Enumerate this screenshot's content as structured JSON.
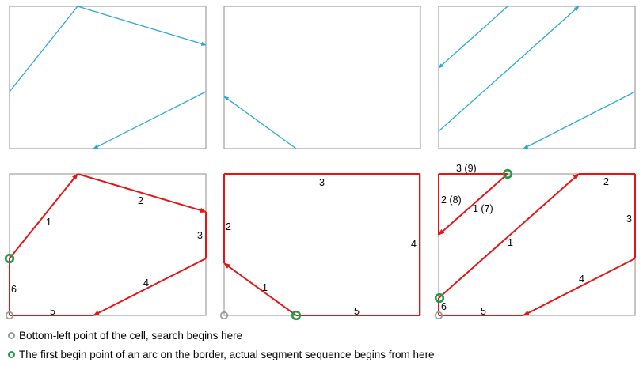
{
  "colors": {
    "arc_blue": "#29a8d6",
    "path_red": "#e31515",
    "frame_grey": "#8c8c8c",
    "marker_grey": "#9a9a9a",
    "marker_green": "#1f9a48"
  },
  "icons": [
    "grey-circle-icon",
    "green-circle-icon"
  ],
  "segment_labels": {
    "cell_1": [
      "1",
      "2",
      "3",
      "4",
      "5",
      "6"
    ],
    "cell_2": [
      "1",
      "2",
      "3",
      "4",
      "5"
    ],
    "cell_3": [
      "1",
      "2",
      "3",
      "4",
      "5",
      "6",
      "1 (7)",
      "2 (8)",
      "3 (9)"
    ]
  },
  "legend": {
    "grey_marker": "Bottom-left point of the cell, search begins here",
    "green_marker": "The first begin point of an arc on the border, actual segment sequence begins from here"
  }
}
